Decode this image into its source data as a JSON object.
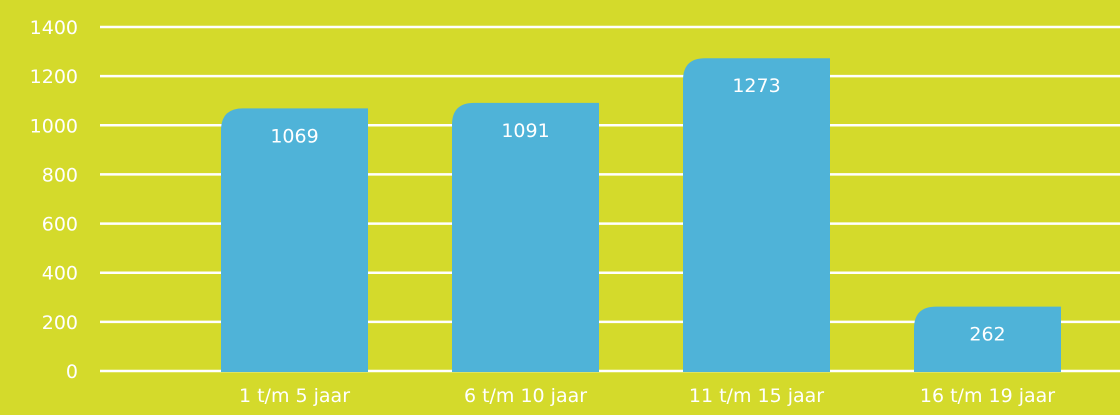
{
  "colors": {
    "background": "#d4da2b",
    "bar": "#4fb3d8",
    "gridline": "#ffffff",
    "text": "#ffffff"
  },
  "chart_data": {
    "type": "bar",
    "title": "",
    "xlabel": "",
    "ylabel": "",
    "categories": [
      "1 t/m 5 jaar",
      "6 t/m 10 jaar",
      "11 t/m 15 jaar",
      "16 t/m 19 jaar"
    ],
    "values": [
      1069,
      1091,
      1273,
      262
    ],
    "value_labels": [
      "1069",
      "1091",
      "1273",
      "262"
    ],
    "ylim": [
      0,
      1400
    ],
    "yticks": [
      0,
      200,
      400,
      600,
      800,
      1000,
      1200,
      1400
    ],
    "ytick_labels": [
      "0",
      "200",
      "400",
      "600",
      "800",
      "1000",
      "1200",
      "1400"
    ],
    "grid": true,
    "legend": "none",
    "bar_style": "rounded-top-left"
  }
}
